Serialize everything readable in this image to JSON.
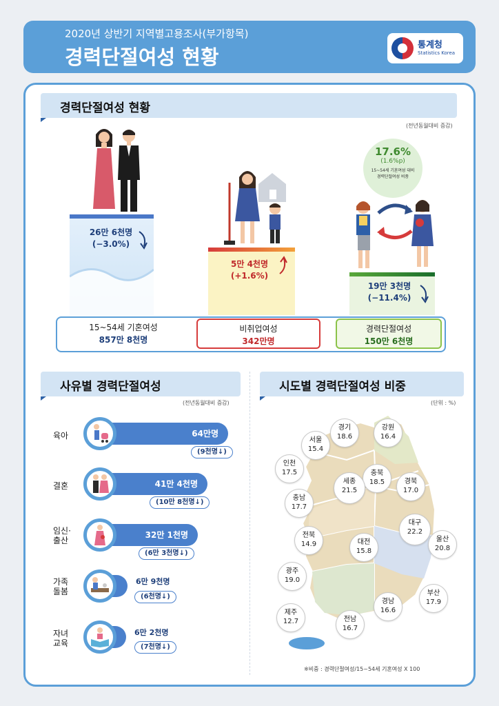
{
  "header": {
    "subtitle": "2020년 상반기 지역별고용조사(부가항목)",
    "title": "경력단절여성 현황",
    "logo_name": "통계청",
    "logo_en": "Statistics Korea"
  },
  "overview": {
    "heading": "경력단절여성 현황",
    "note": "(전년동월대비 증감)",
    "married": {
      "value": "26만 6천명",
      "change": "(−3.0%)"
    },
    "unemployed": {
      "value": "5만 4천명",
      "change": "(+1.6%)"
    },
    "career": {
      "value": "19만 3천명",
      "change": "(−11.4%)"
    },
    "ratio": {
      "value": "17.6%",
      "change": "(1.6%p)",
      "desc1": "15~54세 기혼여성 대비",
      "desc2": "경력단절여성 비중"
    },
    "boxes": [
      {
        "label": "15~54세 기혼여성",
        "value": "857만 8천명"
      },
      {
        "label": "비취업여성",
        "value": "342만명"
      },
      {
        "label": "경력단절여성",
        "value": "150만 6천명"
      }
    ]
  },
  "reasons": {
    "heading": "사유별 경력단절여성",
    "note": "(전년동월대비 증감)",
    "items": [
      {
        "label": "육아",
        "value": "64만명",
        "change": "(9천명↓)",
        "share": 0.425
      },
      {
        "label": "결혼",
        "value": "41만 4천명",
        "change": "(10만 8천명↓)",
        "share": 0.275
      },
      {
        "label1": "임신·",
        "label2": "출산",
        "value": "32만 1천명",
        "change": "(6만 3천명↓)",
        "share": 0.213
      },
      {
        "label1": "가족",
        "label2": "돌봄",
        "value": "6만 9천명",
        "change": "(6천명↓)",
        "share": 0.046
      },
      {
        "label1": "자녀",
        "label2": "교육",
        "value": "6만 2천명",
        "change": "(7천명↓)",
        "share": 0.041
      }
    ]
  },
  "regions": {
    "heading": "시도별 경력단절여성 비중",
    "note": "(단위 : %)",
    "footnote": "※비중 : 경력단절여성/15~54세 기혼여성 X 100",
    "items": [
      {
        "name": "서울",
        "value": "15.4"
      },
      {
        "name": "경기",
        "value": "18.6"
      },
      {
        "name": "강원",
        "value": "16.4"
      },
      {
        "name": "인천",
        "value": "17.5"
      },
      {
        "name": "충북",
        "value": "18.5"
      },
      {
        "name": "세종",
        "value": "21.5"
      },
      {
        "name": "경북",
        "value": "17.0"
      },
      {
        "name": "충남",
        "value": "17.7"
      },
      {
        "name": "대구",
        "value": "22.2"
      },
      {
        "name": "전북",
        "value": "14.9"
      },
      {
        "name": "대전",
        "value": "15.8"
      },
      {
        "name": "울산",
        "value": "20.8"
      },
      {
        "name": "광주",
        "value": "19.0"
      },
      {
        "name": "경남",
        "value": "16.6"
      },
      {
        "name": "부산",
        "value": "17.9"
      },
      {
        "name": "제주",
        "value": "12.7"
      },
      {
        "name": "전남",
        "value": "16.7"
      }
    ]
  },
  "colors": {
    "primary": "#5b9fd8",
    "bar": "#4a80cc",
    "red": "#d63b3b",
    "green": "#3f8a2f"
  }
}
